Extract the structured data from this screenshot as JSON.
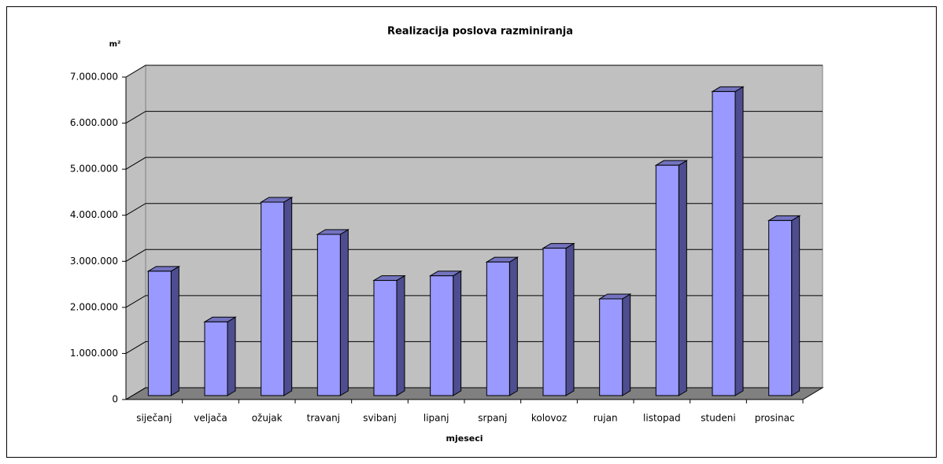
{
  "chart_data": {
    "type": "bar3d",
    "title": "Realizacija poslova razminiranja",
    "y_label": "m²",
    "x_label": "mjeseci",
    "categories": [
      "siječanj",
      "veljača",
      "ožujak",
      "travanj",
      "svibanj",
      "lipanj",
      "srpanj",
      "kolovoz",
      "rujan",
      "listopad",
      "studeni",
      "prosinac"
    ],
    "values": [
      2700000,
      1600000,
      4200000,
      3500000,
      2500000,
      2600000,
      2900000,
      3200000,
      2100000,
      5000000,
      6600000,
      3800000
    ],
    "color": "#9999ff",
    "ylim": [
      0,
      7000000
    ],
    "yticks": [
      0,
      {
        "value": 1000000,
        "label": "1.000.000"
      },
      {
        "value": 2000000,
        "label": "2.000.000"
      },
      {
        "value": 3000000,
        "label": "3.000.000"
      },
      {
        "value": 4000000,
        "label": "4.000.000"
      },
      {
        "value": 5000000,
        "label": "5.000.000"
      },
      {
        "value": 6000000,
        "label": "6.000.000"
      },
      {
        "value": 7000000,
        "label": "7.000.000"
      }
    ],
    "grid": true
  }
}
